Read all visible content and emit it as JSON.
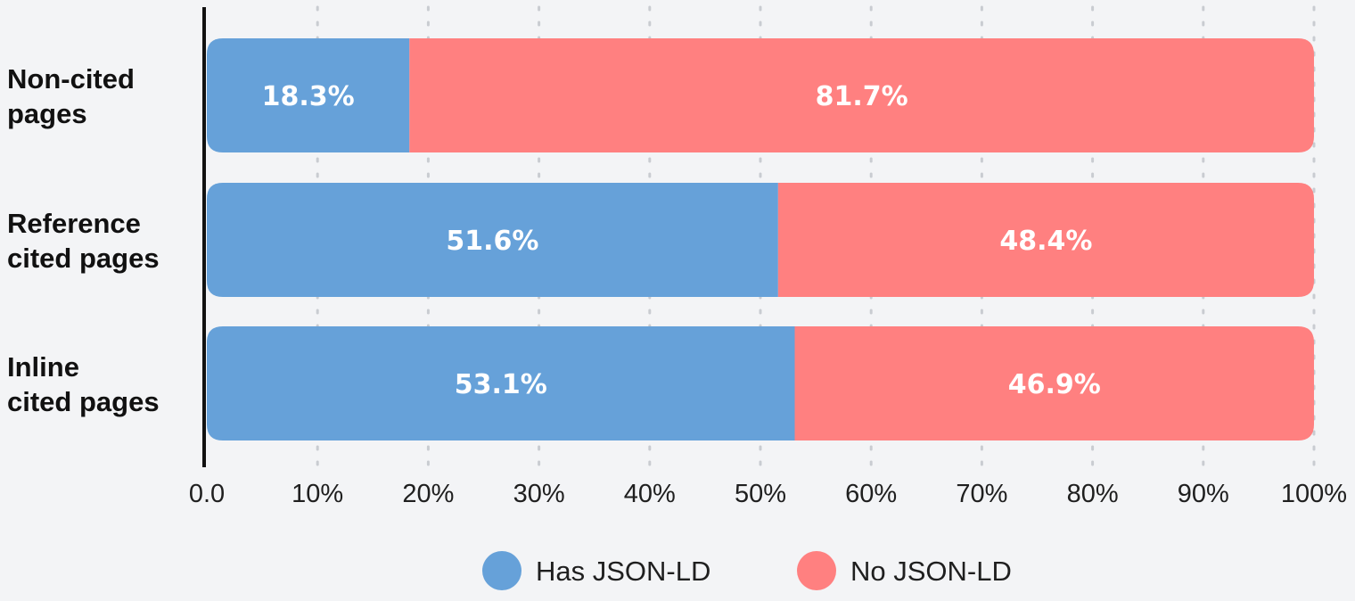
{
  "chart_data": {
    "type": "bar",
    "orientation": "horizontal",
    "stacked": true,
    "categories": [
      "Non-cited pages",
      "Reference cited pages",
      "Inline cited pages"
    ],
    "category_lines": [
      [
        "Non-cited",
        "pages"
      ],
      [
        "Reference",
        "cited pages"
      ],
      [
        "Inline",
        "cited pages"
      ]
    ],
    "series": [
      {
        "name": "Has JSON-LD",
        "values": [
          18.3,
          51.6,
          53.1
        ],
        "labels": [
          "18.3%",
          "51.6%",
          "53.1%"
        ],
        "color": "#66a1d9"
      },
      {
        "name": "No JSON-LD",
        "values": [
          81.7,
          48.4,
          46.9
        ],
        "labels": [
          "81.7%",
          "48.4%",
          "46.9%"
        ],
        "color": "#ff8080"
      }
    ],
    "xlim": [
      0,
      100
    ],
    "xticks": [
      0,
      10,
      20,
      30,
      40,
      50,
      60,
      70,
      80,
      90,
      100
    ],
    "xtick_labels": [
      "0.0",
      "10%",
      "20%",
      "30%",
      "40%",
      "50%",
      "60%",
      "70%",
      "80%",
      "90%",
      "100%"
    ],
    "grid": "vertical dotted",
    "legend_position": "bottom-center",
    "background": "#f3f4f6"
  }
}
